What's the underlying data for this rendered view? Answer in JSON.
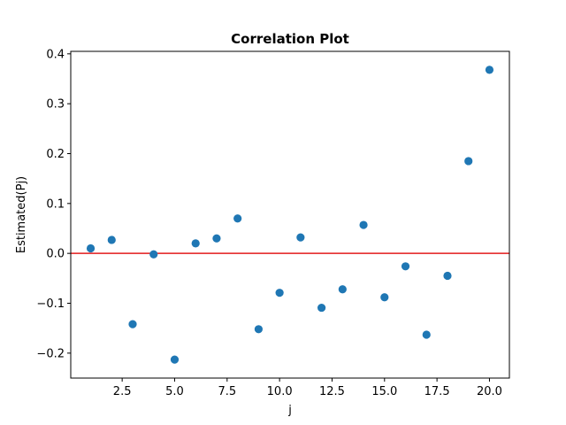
{
  "chart_data": {
    "type": "scatter",
    "title": "Correlation Plot",
    "xlabel": "j",
    "ylabel": "Estimated(Pj)",
    "xlim": [
      0.05,
      20.95
    ],
    "ylim": [
      -0.25,
      0.405
    ],
    "xticks": [
      2.5,
      5.0,
      7.5,
      10.0,
      12.5,
      15.0,
      17.5,
      20.0
    ],
    "xtick_labels": [
      "2.5",
      "5.0",
      "7.5",
      "10.0",
      "12.5",
      "15.0",
      "17.5",
      "20.0"
    ],
    "yticks": [
      -0.2,
      -0.1,
      0.0,
      0.1,
      0.2,
      0.3,
      0.4
    ],
    "ytick_labels": [
      "−0.2",
      "−0.1",
      "0.0",
      "0.1",
      "0.2",
      "0.3",
      "0.4"
    ],
    "x": [
      1,
      2,
      3,
      4,
      5,
      6,
      7,
      8,
      9,
      10,
      11,
      12,
      13,
      14,
      15,
      16,
      17,
      18,
      19,
      20
    ],
    "y": [
      0.01,
      0.027,
      -0.142,
      -0.002,
      -0.213,
      0.02,
      0.03,
      0.07,
      -0.152,
      -0.079,
      0.032,
      -0.109,
      -0.072,
      0.057,
      -0.088,
      -0.026,
      -0.163,
      -0.045,
      0.185,
      0.368
    ],
    "reference_line_y": 0.0,
    "grid": false,
    "point_color": "#1f77b4",
    "reference_line_color": "#e31a1c"
  }
}
